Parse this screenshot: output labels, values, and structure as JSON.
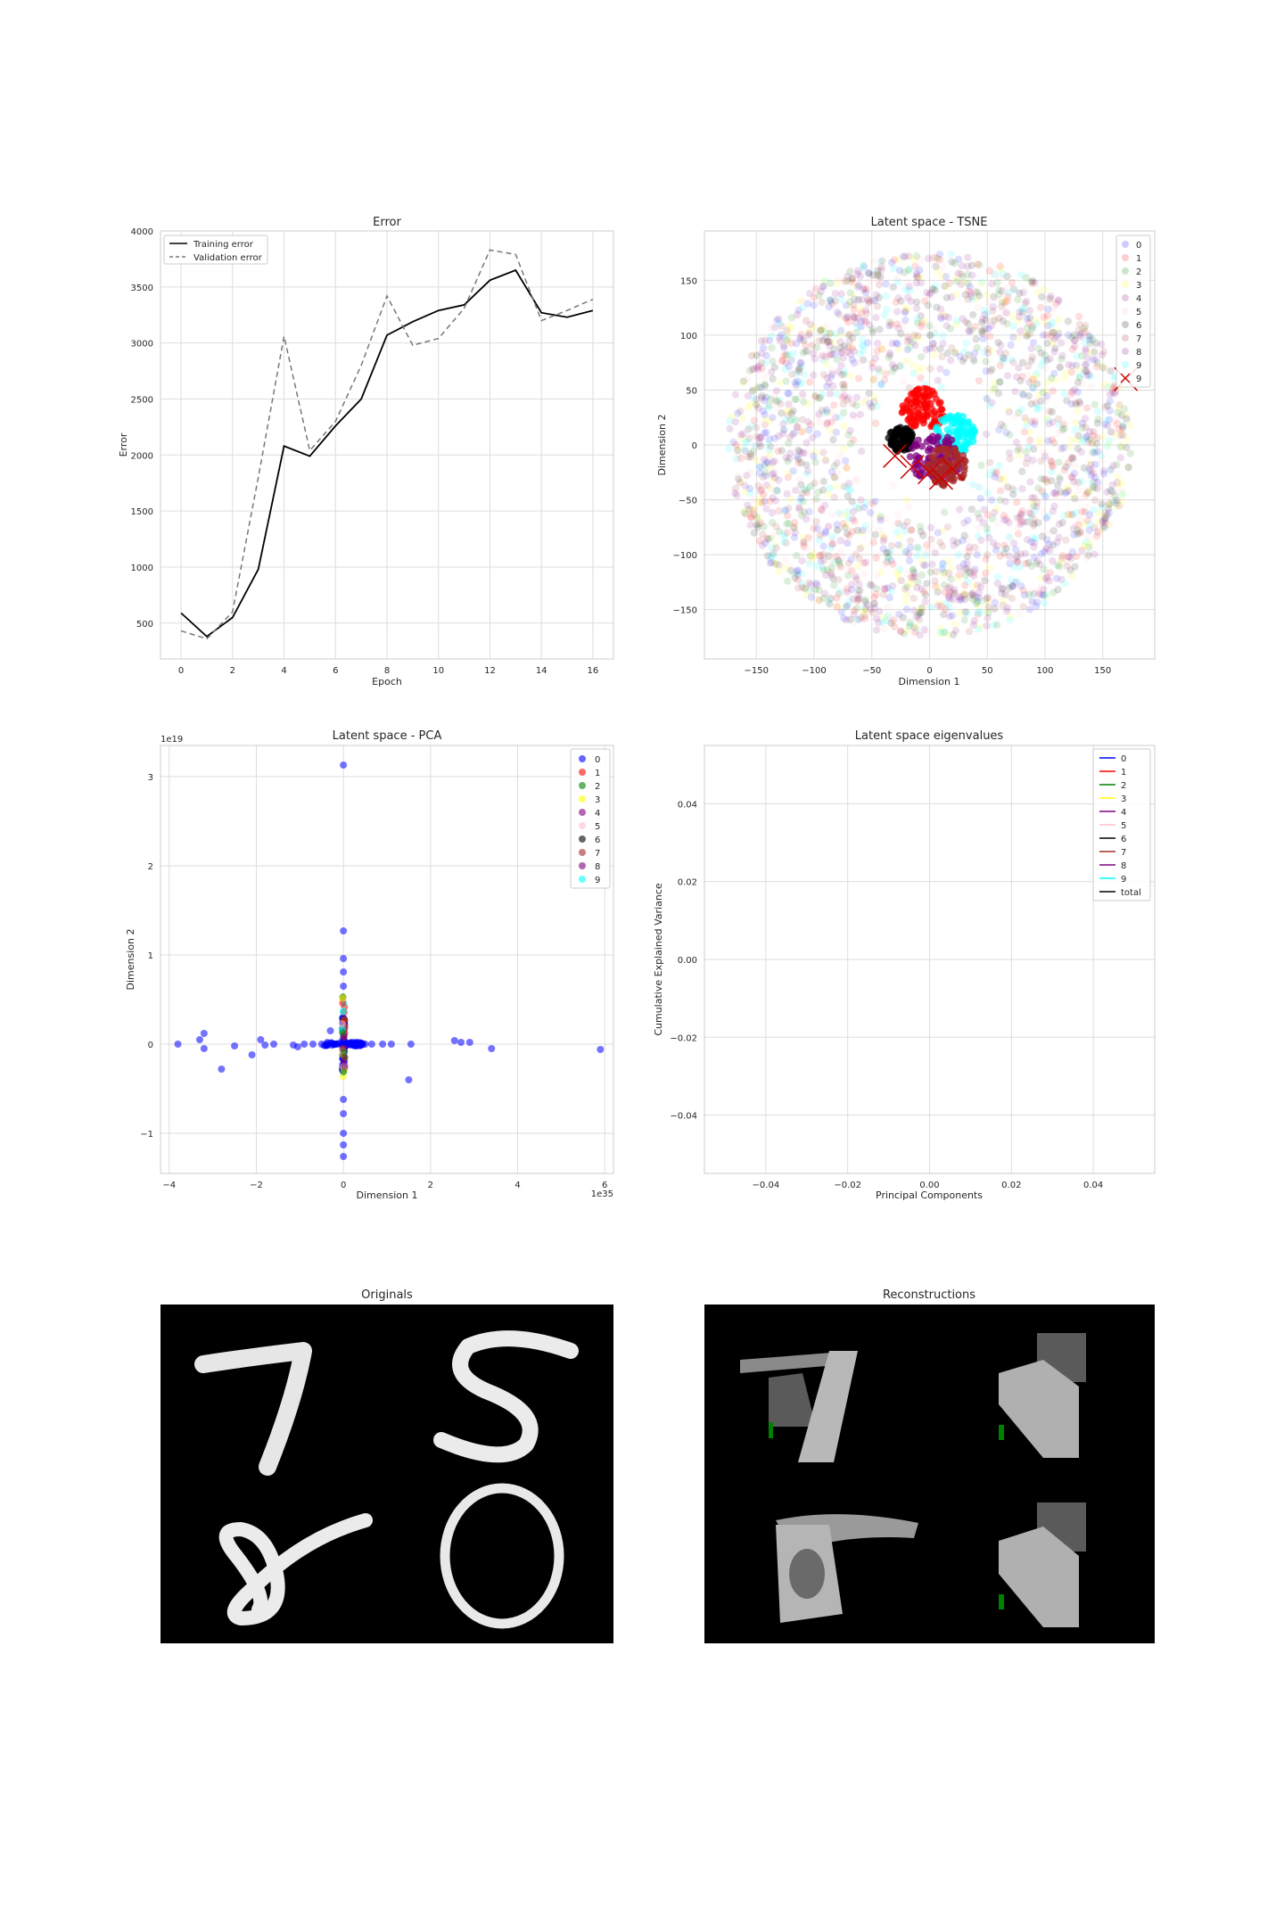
{
  "colors": {
    "blue": "#0000ff",
    "red": "#ff0000",
    "green": "#008000",
    "yellow": "#ffff00",
    "purple": "#800080",
    "pink": "#ffc0cb",
    "black": "#000000",
    "brown": "#a52a2a",
    "cyan": "#00ffff",
    "grid": "#dddddd",
    "panel_edge": "#cccccc",
    "marker_x": "#cc0000"
  },
  "chart_data": [
    {
      "type": "line",
      "title": "Error",
      "xlabel": "Epoch",
      "ylabel": "Error",
      "xlim": [
        -0.8,
        16.8
      ],
      "ylim": [
        180,
        4000
      ],
      "xticks": [
        0,
        2,
        4,
        6,
        8,
        10,
        12,
        14,
        16
      ],
      "yticks": [
        500,
        1000,
        1500,
        2000,
        2500,
        3000,
        3500,
        4000
      ],
      "grid": true,
      "legend": "top-left",
      "x": [
        0,
        1,
        2,
        3,
        4,
        5,
        6,
        7,
        8,
        9,
        10,
        11,
        12,
        13,
        14,
        15,
        16
      ],
      "series": [
        {
          "name": "Training error",
          "style": "solid",
          "color": "#000000",
          "values": [
            590,
            380,
            550,
            980,
            2080,
            1990,
            2260,
            2500,
            3070,
            3190,
            3290,
            3340,
            3560,
            3650,
            3270,
            3230,
            3290
          ]
        },
        {
          "name": "Validation error",
          "style": "dashed",
          "color": "#777777",
          "values": [
            430,
            360,
            600,
            1800,
            3060,
            2040,
            2300,
            2800,
            3420,
            2980,
            3040,
            3310,
            3830,
            3790,
            3200,
            3290,
            3390
          ]
        }
      ]
    },
    {
      "type": "scatter",
      "title": "Latent space - TSNE",
      "xlabel": "Dimension 1",
      "ylabel": "Dimension 2",
      "xlim": [
        -195,
        195
      ],
      "ylim": [
        -195,
        195
      ],
      "xticks": [
        -150,
        -100,
        -50,
        0,
        50,
        100,
        150
      ],
      "yticks": [
        -150,
        -100,
        -50,
        0,
        50,
        100,
        150
      ],
      "grid": true,
      "legend": "top-right",
      "cloud_radius": 175,
      "hole_radius": 48,
      "legend_entries": [
        "0",
        "1",
        "2",
        "3",
        "4",
        "5",
        "6",
        "7",
        "8",
        "9",
        "9"
      ],
      "legend_marker": "x",
      "clusters": [
        {
          "label": "1",
          "color": "#ff0000",
          "cx": -5,
          "cy": 33,
          "spread": 12
        },
        {
          "label": "9",
          "color": "#00ffff",
          "cx": 22,
          "cy": 10,
          "spread": 11
        },
        {
          "label": "6",
          "color": "#000000",
          "cx": -25,
          "cy": 5,
          "spread": 7
        },
        {
          "label": "8",
          "color": "#800080",
          "cx": 5,
          "cy": -12,
          "spread": 14
        },
        {
          "label": "7",
          "color": "#a52a2a",
          "cx": 15,
          "cy": -20,
          "spread": 11
        }
      ],
      "x_markers": [
        [
          -30,
          -10
        ],
        [
          -15,
          -20
        ],
        [
          0,
          -25
        ],
        [
          10,
          -30
        ],
        [
          20,
          -22
        ],
        [
          170,
          60
        ]
      ]
    },
    {
      "type": "scatter",
      "title": "Latent space - PCA",
      "xlabel": "Dimension 1",
      "ylabel": "Dimension 2",
      "x_scale_label": "1e35",
      "y_scale_label": "1e19",
      "xlim": [
        -4.2,
        6.2
      ],
      "ylim": [
        -1.45,
        3.35
      ],
      "xticks": [
        -4,
        -2,
        0,
        2,
        4,
        6
      ],
      "yticks": [
        -1,
        0,
        1,
        2,
        3
      ],
      "grid": true,
      "legend": "top-right",
      "legend_entries": [
        "0",
        "1",
        "2",
        "3",
        "4",
        "5",
        "6",
        "7",
        "8",
        "9"
      ],
      "points_label0": [
        [
          -3.8,
          0
        ],
        [
          -3.3,
          0.05
        ],
        [
          -3.2,
          0.12
        ],
        [
          -3.2,
          -0.05
        ],
        [
          -2.8,
          -0.28
        ],
        [
          -2.5,
          -0.02
        ],
        [
          -2.1,
          -0.12
        ],
        [
          -1.9,
          0.05
        ],
        [
          -1.8,
          -0.01
        ],
        [
          -1.6,
          0
        ],
        [
          -1.15,
          -0.01
        ],
        [
          -1.05,
          -0.03
        ],
        [
          -0.9,
          0
        ],
        [
          -0.7,
          0
        ],
        [
          -0.5,
          0
        ],
        [
          -0.3,
          0.15
        ],
        [
          -0.2,
          0
        ],
        [
          0.2,
          0.02
        ],
        [
          0.35,
          0
        ],
        [
          0.5,
          0
        ],
        [
          0.65,
          0
        ],
        [
          0.9,
          0
        ],
        [
          1.1,
          0
        ],
        [
          1.5,
          -0.4
        ],
        [
          1.55,
          0
        ],
        [
          2.55,
          0.04
        ],
        [
          2.7,
          0.02
        ],
        [
          2.9,
          0.02
        ],
        [
          3.4,
          -0.05
        ],
        [
          5.9,
          -0.06
        ],
        [
          0,
          3.13
        ],
        [
          0,
          1.27
        ],
        [
          0,
          0.96
        ],
        [
          0,
          0.81
        ],
        [
          0,
          0.65
        ],
        [
          0,
          -0.62
        ],
        [
          0,
          -0.78
        ],
        [
          0,
          -1.0
        ],
        [
          0,
          -1.13
        ],
        [
          0,
          -1.26
        ]
      ]
    },
    {
      "type": "line",
      "title": "Latent space eigenvalues",
      "xlabel": "Principal Components",
      "ylabel": "Cumulative Explained Variance",
      "xlim": [
        -0.055,
        0.055
      ],
      "ylim": [
        -0.055,
        0.055
      ],
      "xticks": [
        "-0.04",
        "-0.02",
        "0.00",
        "0.02",
        "0.04"
      ],
      "yticks": [
        "-0.04",
        "-0.02",
        "0.00",
        "0.02",
        "0.04"
      ],
      "grid": true,
      "legend": "top-right",
      "series": [
        {
          "name": "0",
          "color": "#0000ff"
        },
        {
          "name": "1",
          "color": "#ff0000"
        },
        {
          "name": "2",
          "color": "#008000"
        },
        {
          "name": "3",
          "color": "#ffff00"
        },
        {
          "name": "4",
          "color": "#800080"
        },
        {
          "name": "5",
          "color": "#ffc0cb"
        },
        {
          "name": "6",
          "color": "#000000"
        },
        {
          "name": "7",
          "color": "#a52a2a"
        },
        {
          "name": "8",
          "color": "#800080"
        },
        {
          "name": "9",
          "color": "#00ffff"
        },
        {
          "name": "total",
          "color": "#000000"
        }
      ]
    }
  ],
  "images": [
    {
      "title": "Originals",
      "digits": [
        "7",
        "5",
        "8",
        "0"
      ]
    },
    {
      "title": "Reconstructions"
    }
  ]
}
